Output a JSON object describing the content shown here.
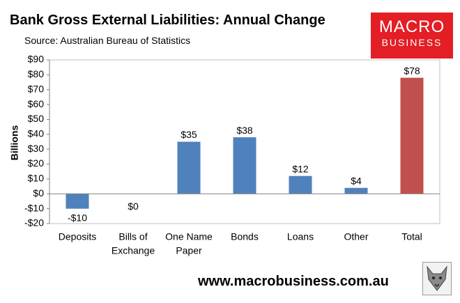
{
  "header": {
    "title": "Bank Gross External Liabilities: Annual Change",
    "subtitle": "Source: Australian Bureau of Statistics"
  },
  "logo": {
    "line1": "MACRO",
    "line2": "BUSINESS",
    "color": "#e31e24"
  },
  "footer": {
    "url": "www.macrobusiness.com.au"
  },
  "chart_data": {
    "type": "bar",
    "title": "Bank Gross External Liabilities: Annual Change",
    "subtitle": "Source: Australian Bureau of Statistics",
    "xlabel": "",
    "ylabel": "Billions",
    "ylim": [
      -20,
      90
    ],
    "yticks": [
      -20,
      -10,
      0,
      10,
      20,
      30,
      40,
      50,
      60,
      70,
      80,
      90
    ],
    "ytick_labels": [
      "-$20",
      "-$10",
      "$0",
      "$10",
      "$20",
      "$30",
      "$40",
      "$50",
      "$60",
      "$70",
      "$80",
      "$90"
    ],
    "categories": [
      [
        "Deposits"
      ],
      [
        "Bills of",
        "Exchange"
      ],
      [
        "One Name",
        "Paper"
      ],
      [
        "Bonds"
      ],
      [
        "Loans"
      ],
      [
        "Other"
      ],
      [
        "Total"
      ]
    ],
    "values": [
      -10,
      0,
      35,
      38,
      12,
      4,
      78
    ],
    "data_labels": [
      "-$10",
      "$0",
      "$35",
      "$38",
      "$12",
      "$4",
      "$78"
    ],
    "colors": [
      "#4f81bd",
      "#4f81bd",
      "#4f81bd",
      "#4f81bd",
      "#4f81bd",
      "#4f81bd",
      "#c0504d"
    ],
    "grid": false,
    "legend": "none"
  }
}
